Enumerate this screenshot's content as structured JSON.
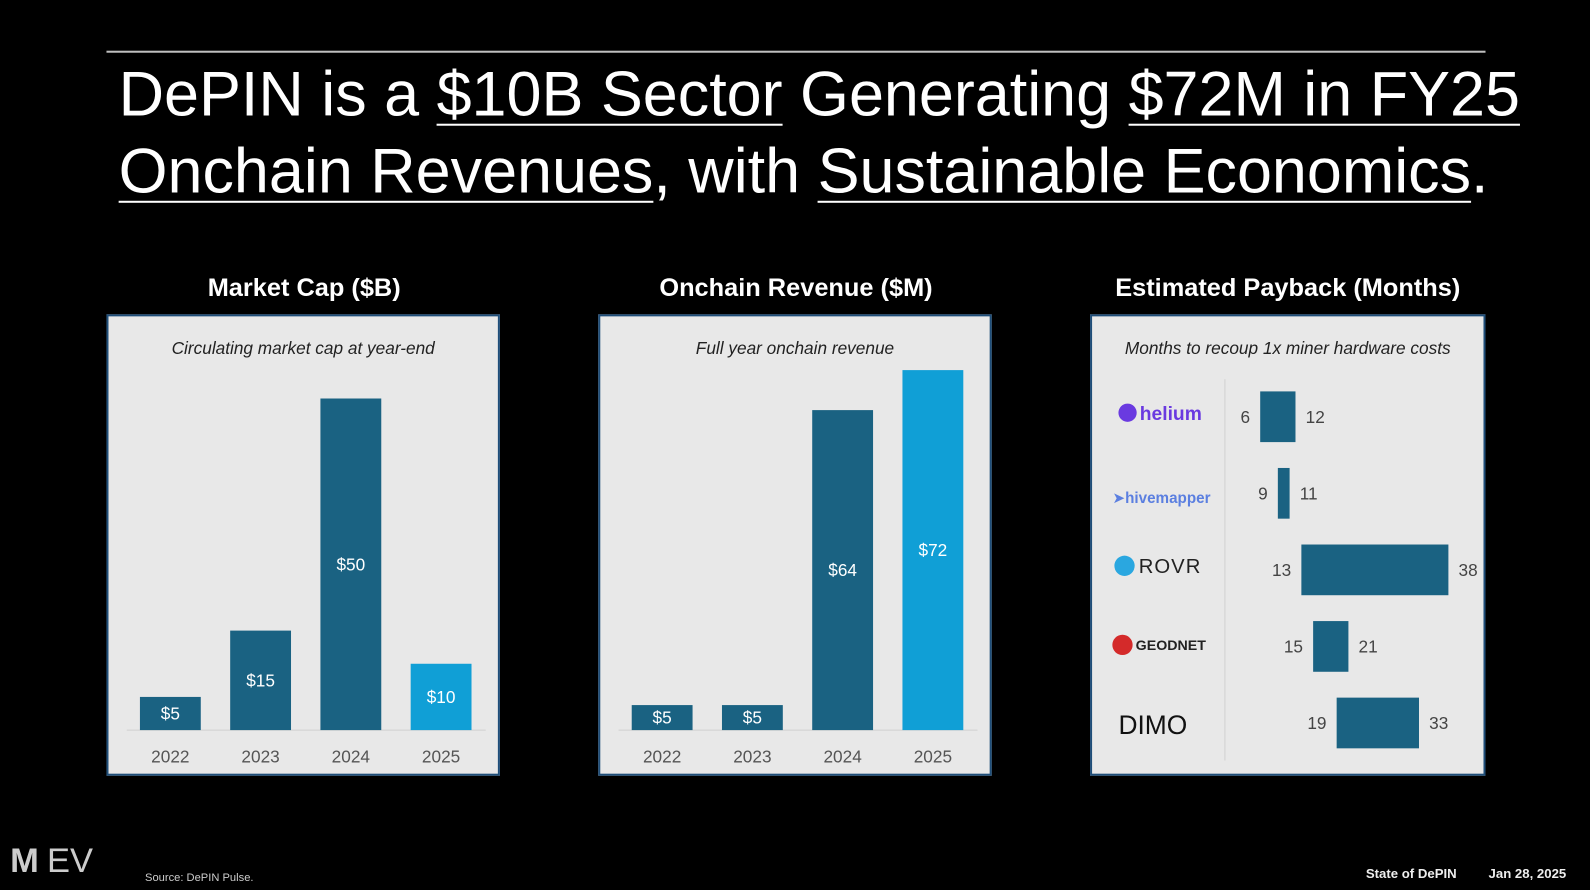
{
  "title": {
    "line1_pre": "DePIN is a ",
    "line1_u1": "$10B Sector",
    "line1_mid": " Generating ",
    "line1_u2": "$72M in FY25",
    "line2_u1": "Onchain Revenues",
    "line2_mid": ", with ",
    "line2_u2": "Sustainable Economics",
    "line2_end": "."
  },
  "colors": {
    "bar": "#1a6282",
    "highlight": "#109fd6",
    "panel": "#e8e8e8",
    "border": "#1f4e79"
  },
  "chart_data": [
    {
      "type": "bar",
      "title": "Market Cap ($B)",
      "subtitle": "Circulating market cap at year-end",
      "categories": [
        "2022",
        "2023",
        "2024",
        "2025"
      ],
      "values": [
        5,
        15,
        50,
        10
      ],
      "labels": [
        "$5",
        "$15",
        "$50",
        "$10"
      ],
      "highlight_index": 3
    },
    {
      "type": "bar",
      "title": "Onchain Revenue ($M)",
      "subtitle": "Full year onchain revenue",
      "categories": [
        "2022",
        "2023",
        "2024",
        "2025"
      ],
      "values": [
        5,
        5,
        64,
        72
      ],
      "labels": [
        "$5",
        "$5",
        "$64",
        "$72"
      ],
      "highlight_index": 3
    },
    {
      "type": "range-bar",
      "title": "Estimated Payback (Months)",
      "subtitle": "Months to recoup 1x miner hardware costs",
      "categories": [
        "helium",
        "hivemapper",
        "ROVR",
        "GEODNET",
        "DIMO"
      ],
      "low": [
        6,
        9,
        13,
        15,
        19
      ],
      "high": [
        12,
        11,
        38,
        21,
        33
      ]
    }
  ],
  "logos": {
    "helium": "helium",
    "hivemapper": "hivemapper",
    "rovr": "ROVR",
    "geodnet": "GEODNET",
    "dimo": "DIMO",
    "ev": "EV"
  },
  "footer": {
    "source": "Source: DePIN Pulse.",
    "deck": "State of DePIN",
    "date": "Jan 28, 2025"
  }
}
